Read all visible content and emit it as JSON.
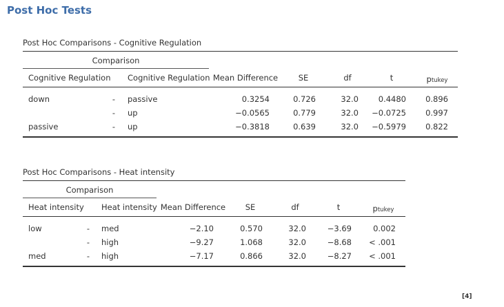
{
  "heading": "Post Hoc Tests",
  "table1": {
    "title": "Post Hoc Comparisons - Cognitive Regulation",
    "group_header": "Comparison",
    "col1": "Cognitive Regulation",
    "col2": "Cognitive Regulation",
    "col_mean_diff": "Mean Difference",
    "col_se": "SE",
    "col_df": "df",
    "col_t": "t",
    "col_p": "p",
    "col_p_sub": "tukey",
    "rows": [
      {
        "a": "down",
        "sep": "-",
        "b": "passive",
        "md": "0.3254",
        "se": "0.726",
        "df": "32.0",
        "t": "0.4480",
        "p": "0.896"
      },
      {
        "a": "",
        "sep": "-",
        "b": "up",
        "md": "−0.0565",
        "se": "0.779",
        "df": "32.0",
        "t": "−0.0725",
        "p": "0.997"
      },
      {
        "a": "passive",
        "sep": "-",
        "b": "up",
        "md": "−0.3818",
        "se": "0.639",
        "df": "32.0",
        "t": "−0.5979",
        "p": "0.822"
      }
    ]
  },
  "table2": {
    "title": "Post Hoc Comparisons - Heat intensity",
    "group_header": "Comparison",
    "col1": "Heat intensity",
    "col2": "Heat intensity",
    "col_mean_diff": "Mean Difference",
    "col_se": "SE",
    "col_df": "df",
    "col_t": "t",
    "col_p": "p",
    "col_p_sub": "tukey",
    "rows": [
      {
        "a": "low",
        "sep": "-",
        "b": "med",
        "md": "−2.10",
        "se": "0.570",
        "df": "32.0",
        "t": "−3.69",
        "p": "0.002"
      },
      {
        "a": "",
        "sep": "-",
        "b": "high",
        "md": "−9.27",
        "se": "1.068",
        "df": "32.0",
        "t": "−8.68",
        "p": "< .001"
      },
      {
        "a": "med",
        "sep": "-",
        "b": "high",
        "md": "−7.17",
        "se": "0.866",
        "df": "32.0",
        "t": "−8.27",
        "p": "< .001"
      }
    ]
  },
  "footnote": "[4]"
}
